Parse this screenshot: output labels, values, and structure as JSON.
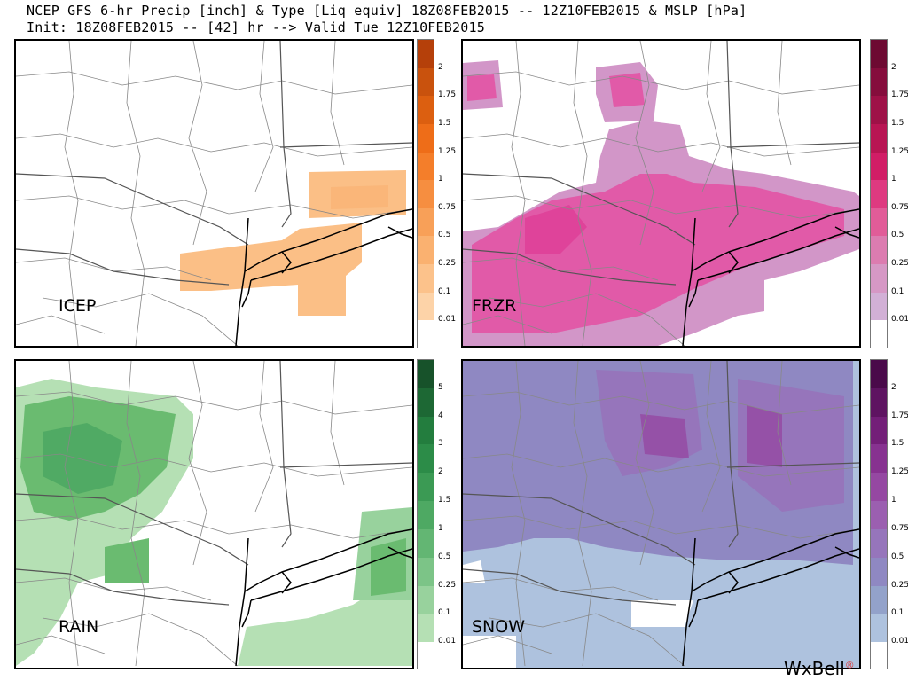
{
  "header": {
    "line1": "NCEP GFS 6-hr Precip [inch] & Type [Liq equiv] 18Z08FEB2015 -- 12Z10FEB2015 & MSLP [hPa]",
    "line2": "Init: 18Z08FEB2015 -- [42] hr --> Valid Tue 12Z10FEB2015"
  },
  "panels": {
    "icep": {
      "label": "ICEP",
      "ticks": [
        "2",
        "1.75",
        "1.5",
        "1.25",
        "1",
        "0.75",
        "0.5",
        "0.25",
        "0.1",
        "0.01"
      ],
      "colors": [
        "#b5400a",
        "#c9520d",
        "#dc5f10",
        "#ee6d18",
        "#f47e2a",
        "#f68e40",
        "#f8a058",
        "#fab170",
        "#fcc28b",
        "#fdd3a8",
        "#ffffff"
      ],
      "accent": "#fbb97e"
    },
    "frzr": {
      "label": "FRZR",
      "ticks": [
        "2",
        "1.75",
        "1.5",
        "1.25",
        "1",
        "0.75",
        "0.5",
        "0.25",
        "0.1",
        "0.01"
      ],
      "colors": [
        "#6d0a32",
        "#850d3c",
        "#9e1147",
        "#b81553",
        "#d11d66",
        "#de3a80",
        "#e15c98",
        "#dc7cb0",
        "#d698c5",
        "#d2b0d6",
        "#ffffff"
      ],
      "accent": "#de4aa6"
    },
    "rain": {
      "label": "RAIN",
      "ticks": [
        "5",
        "4",
        "3",
        "2",
        "1.5",
        "1",
        "0.5",
        "0.25",
        "0.1",
        "0.01"
      ],
      "colors": [
        "#17522a",
        "#1d6834",
        "#237d3e",
        "#2c8c48",
        "#3b9a54",
        "#4ea963",
        "#63b673",
        "#7cc487",
        "#98d29d",
        "#b5e0b4",
        "#ffffff"
      ],
      "accent": "#6abb70"
    },
    "snow": {
      "label": "SNOW",
      "ticks": [
        "2",
        "1.75",
        "1.5",
        "1.25",
        "1",
        "0.75",
        "0.5",
        "0.25",
        "0.1",
        "0.01"
      ],
      "colors": [
        "#4a0a4a",
        "#5e1461",
        "#731f78",
        "#873290",
        "#9548a2",
        "#9b5fb0",
        "#9675bb",
        "#8f88c2",
        "#93a2ca",
        "#aec2de",
        "#ffffff"
      ],
      "accent": "#8a7cc2"
    }
  },
  "brand": {
    "name": "WxBell",
    "mark": "®"
  }
}
